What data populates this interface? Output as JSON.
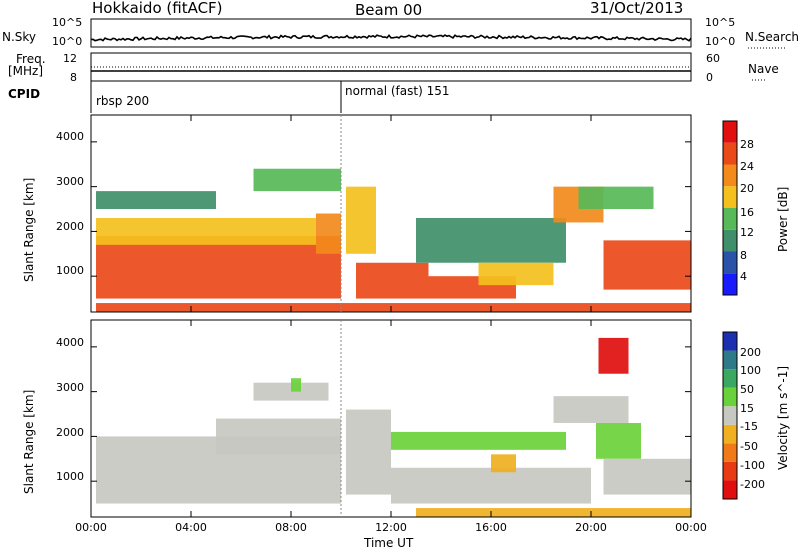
{
  "header": {
    "title": "Hokkaido (fitACF)",
    "beam": "Beam 00",
    "date": "31/Oct/2013"
  },
  "top_panels": {
    "nsky_label": "N.Sky",
    "nsky_ticks": [
      "10^5",
      "10^0"
    ],
    "nsearch_label": "N.Search",
    "nsearch_ticks": [
      "10^5",
      "10^0"
    ],
    "freq_label_1": "Freq.",
    "freq_label_2": "[MHz]",
    "freq_ticks": [
      "12",
      "8"
    ],
    "nave_label": "Nave",
    "nave_ticks": [
      "60",
      "0"
    ],
    "cpid_label": "CPID",
    "cpid_modes": [
      "rbsp 200",
      "normal (fast) 151"
    ]
  },
  "chart_data": [
    {
      "type": "heatmap",
      "title": "",
      "xlabel": "Time UT",
      "ylabel": "Slant Range [km]",
      "xlim": [
        "00:00",
        "24:00"
      ],
      "ylim": [
        200,
        4600
      ],
      "x_ticks": [
        "00:00",
        "04:00",
        "08:00",
        "12:00",
        "16:00",
        "20:00",
        "00:00"
      ],
      "y_ticks": [
        1000,
        2000,
        3000,
        4000
      ],
      "colorbar_label": "Power [dB]",
      "colorbar_ticks": [
        4,
        8,
        12,
        16,
        20,
        24,
        28
      ],
      "colorbar_range": [
        0,
        30
      ],
      "colors": [
        "#1a1aff",
        "#2a52a8",
        "#3f8f6a",
        "#57b957",
        "#f4c01e",
        "#f28a1c",
        "#ea4a1a",
        "#e0100e"
      ],
      "regions": [
        {
          "t0": 0.2,
          "t1": 10.0,
          "r0": 500,
          "r1": 1900,
          "power": 26
        },
        {
          "t0": 0.2,
          "t1": 9.0,
          "r0": 1700,
          "r1": 2300,
          "power": 18
        },
        {
          "t0": 9.0,
          "t1": 10.0,
          "r0": 1500,
          "r1": 2400,
          "power": 20
        },
        {
          "t0": 6.5,
          "t1": 10.0,
          "r0": 2900,
          "r1": 3400,
          "power": 14
        },
        {
          "t0": 0.2,
          "t1": 5.0,
          "r0": 2500,
          "r1": 2900,
          "power": 10
        },
        {
          "t0": 10.2,
          "t1": 11.4,
          "r0": 1500,
          "r1": 3000,
          "power": 18
        },
        {
          "t0": 10.6,
          "t1": 13.5,
          "r0": 500,
          "r1": 1300,
          "power": 24
        },
        {
          "t0": 13.5,
          "t1": 17.0,
          "r0": 500,
          "r1": 1000,
          "power": 24
        },
        {
          "t0": 13.0,
          "t1": 19.0,
          "r0": 1300,
          "r1": 2300,
          "power": 10
        },
        {
          "t0": 15.5,
          "t1": 18.5,
          "r0": 800,
          "r1": 1300,
          "power": 18
        },
        {
          "t0": 18.5,
          "t1": 20.5,
          "r0": 2200,
          "r1": 3000,
          "power": 20
        },
        {
          "t0": 19.5,
          "t1": 22.5,
          "r0": 2500,
          "r1": 3000,
          "power": 14
        },
        {
          "t0": 20.5,
          "t1": 24.0,
          "r0": 700,
          "r1": 1800,
          "power": 24
        },
        {
          "t0": 0.2,
          "t1": 24.0,
          "r0": 200,
          "r1": 400,
          "power": 26
        }
      ]
    },
    {
      "type": "heatmap",
      "title": "",
      "xlabel": "Time UT",
      "ylabel": "Slant Range [km]",
      "xlim": [
        "00:00",
        "24:00"
      ],
      "ylim": [
        200,
        4600
      ],
      "x_ticks": [
        "00:00",
        "04:00",
        "08:00",
        "12:00",
        "16:00",
        "20:00",
        "00:00"
      ],
      "y_ticks": [
        1000,
        2000,
        3000,
        4000
      ],
      "colorbar_label": "Velocity [m s^-1]",
      "colorbar_ticks": [
        "200",
        "100",
        "50",
        "15",
        "-15",
        "-50",
        "-100",
        "-200"
      ],
      "colorbar_range": [
        -250,
        250
      ],
      "colors": [
        "#1c2fb0",
        "#2f7a88",
        "#3aa860",
        "#6bd13a",
        "#c8c8c2",
        "#f0b020",
        "#f07a18",
        "#e83a14",
        "#e00e0e"
      ],
      "regions": [
        {
          "t0": 0.2,
          "t1": 10.0,
          "r0": 500,
          "r1": 2000,
          "velocity": 0
        },
        {
          "t0": 5.0,
          "t1": 10.0,
          "r0": 1600,
          "r1": 2400,
          "velocity": 0
        },
        {
          "t0": 6.5,
          "t1": 9.5,
          "r0": 2800,
          "r1": 3200,
          "velocity": 0
        },
        {
          "t0": 10.2,
          "t1": 12.0,
          "r0": 700,
          "r1": 2600,
          "velocity": 0
        },
        {
          "t0": 12.0,
          "t1": 20.0,
          "r0": 500,
          "r1": 1300,
          "velocity": 0
        },
        {
          "t0": 12.0,
          "t1": 19.0,
          "r0": 1700,
          "r1": 2100,
          "velocity": 40
        },
        {
          "t0": 16.0,
          "t1": 17.0,
          "r0": 1200,
          "r1": 1600,
          "velocity": -60
        },
        {
          "t0": 18.5,
          "t1": 21.5,
          "r0": 2300,
          "r1": 2900,
          "velocity": 0
        },
        {
          "t0": 20.2,
          "t1": 22.0,
          "r0": 1500,
          "r1": 2300,
          "velocity": 40
        },
        {
          "t0": 20.5,
          "t1": 24.0,
          "r0": 700,
          "r1": 1500,
          "velocity": 0
        },
        {
          "t0": 20.3,
          "t1": 21.5,
          "r0": 3400,
          "r1": 4200,
          "velocity": -200
        },
        {
          "t0": 13.0,
          "t1": 24.0,
          "r0": 200,
          "r1": 400,
          "velocity": -60
        },
        {
          "t0": 8.0,
          "t1": 8.4,
          "r0": 3000,
          "r1": 3300,
          "velocity": 60
        }
      ]
    }
  ]
}
